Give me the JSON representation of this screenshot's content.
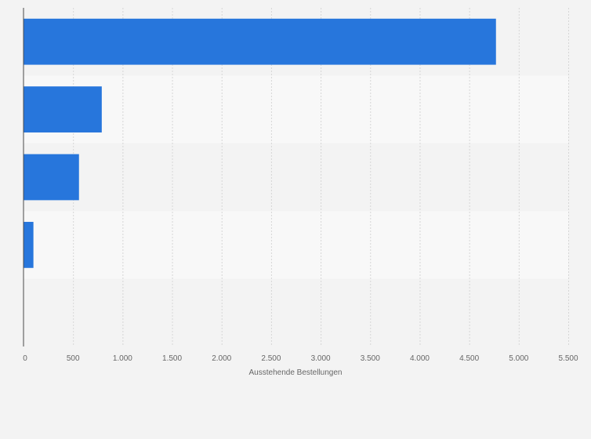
{
  "chart_data": {
    "type": "bar",
    "orientation": "horizontal",
    "categories": [
      "",
      "",
      "",
      "",
      ""
    ],
    "values": [
      4770,
      790,
      560,
      100,
      0
    ],
    "xlabel": "Ausstehende Bestellungen",
    "xlim": [
      0,
      5500
    ],
    "xticks": [
      0,
      500,
      1000,
      1500,
      2000,
      2500,
      3000,
      3500,
      4000,
      4500,
      5000,
      5500
    ],
    "xtick_labels": [
      "0",
      "500",
      "1.000",
      "1.500",
      "2.000",
      "2.500",
      "3.000",
      "3.500",
      "4.000",
      "4.500",
      "5.000",
      "5.500"
    ],
    "grid": true,
    "legend": "none"
  },
  "colors": {
    "bar": "#2776dc",
    "band_a": "#f3f3f3",
    "band_b": "#f8f8f8",
    "grid": "#d6d6d6",
    "axis": "#4a4a4a"
  }
}
